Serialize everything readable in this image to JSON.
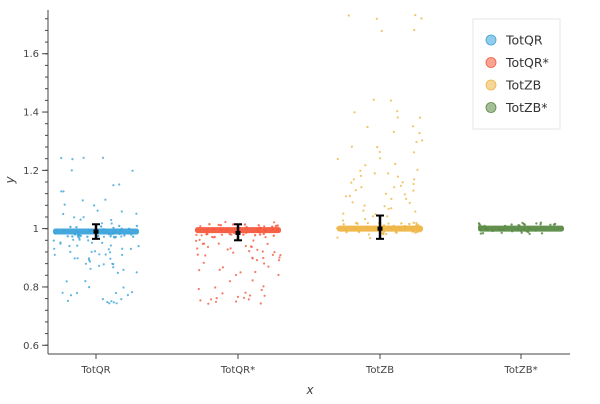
{
  "chart_data": {
    "type": "scatter",
    "title": "",
    "xlabel": "x",
    "ylabel": "y",
    "categories": [
      "TotQR",
      "TotQR*",
      "TotZB",
      "TotZB*"
    ],
    "ylim": [
      0.57,
      1.75
    ],
    "yticks": [
      0.6,
      0.8,
      1,
      1.2,
      1.4,
      1.6
    ],
    "ytick_labels": [
      "0.6",
      "0.8",
      "1",
      "1.2",
      "1.4",
      "1.6"
    ],
    "grid": false,
    "legend_position": "top-right",
    "series": [
      {
        "name": "TotQR",
        "category": "TotQR",
        "color": "#3ba3db",
        "mean": 0.99,
        "err_low": 0.965,
        "err_high": 1.015,
        "core": 0.99,
        "points": [
          0.745,
          0.75,
          0.745,
          0.76,
          0.77,
          0.78,
          0.78,
          0.8,
          0.82,
          0.85,
          0.86,
          0.87,
          0.88,
          0.88,
          0.89,
          0.9,
          0.9,
          0.91,
          0.91,
          0.92,
          0.92,
          0.93,
          0.93,
          0.94,
          0.94,
          0.95,
          0.95,
          0.96,
          0.96,
          0.97,
          0.97,
          0.98,
          0.98,
          1.02,
          1.03,
          1.04,
          1.05,
          1.06,
          1.08,
          1.1,
          1.13,
          1.15,
          1.2,
          1.24,
          1.24
        ]
      },
      {
        "name": "TotQR*",
        "category": "TotQR*",
        "color": "#f5593d",
        "mean": 0.985,
        "err_low": 0.96,
        "err_high": 1.015,
        "core": 0.995,
        "points": [
          0.745,
          0.75,
          0.755,
          0.76,
          0.765,
          0.77,
          0.78,
          0.79,
          0.8,
          0.82,
          0.84,
          0.85,
          0.86,
          0.87,
          0.88,
          0.89,
          0.9,
          0.9,
          0.91,
          0.91,
          0.92,
          0.92,
          0.93,
          0.93,
          0.94,
          0.94,
          0.95,
          0.95,
          0.96,
          0.96,
          0.97,
          0.97,
          0.98,
          0.98,
          1.0,
          1.01,
          1.02
        ]
      },
      {
        "name": "TotZB",
        "category": "TotZB",
        "color": "#eeb544",
        "mean": 1.0,
        "err_low": 0.965,
        "err_high": 1.045,
        "core": 1.0,
        "points": [
          0.97,
          0.98,
          1.01,
          1.02,
          1.03,
          1.04,
          1.05,
          1.06,
          1.07,
          1.08,
          1.09,
          1.1,
          1.11,
          1.12,
          1.13,
          1.14,
          1.15,
          1.16,
          1.17,
          1.18,
          1.19,
          1.2,
          1.22,
          1.24,
          1.26,
          1.28,
          1.3,
          1.33,
          1.35,
          1.38,
          1.4,
          1.44,
          1.68,
          1.72,
          1.73
        ]
      },
      {
        "name": "TotZB*",
        "category": "TotZB*",
        "color": "#5a8a44",
        "mean": 1.0,
        "err_low": 1.0,
        "err_high": 1.0,
        "core": 1.0,
        "points": []
      }
    ]
  }
}
